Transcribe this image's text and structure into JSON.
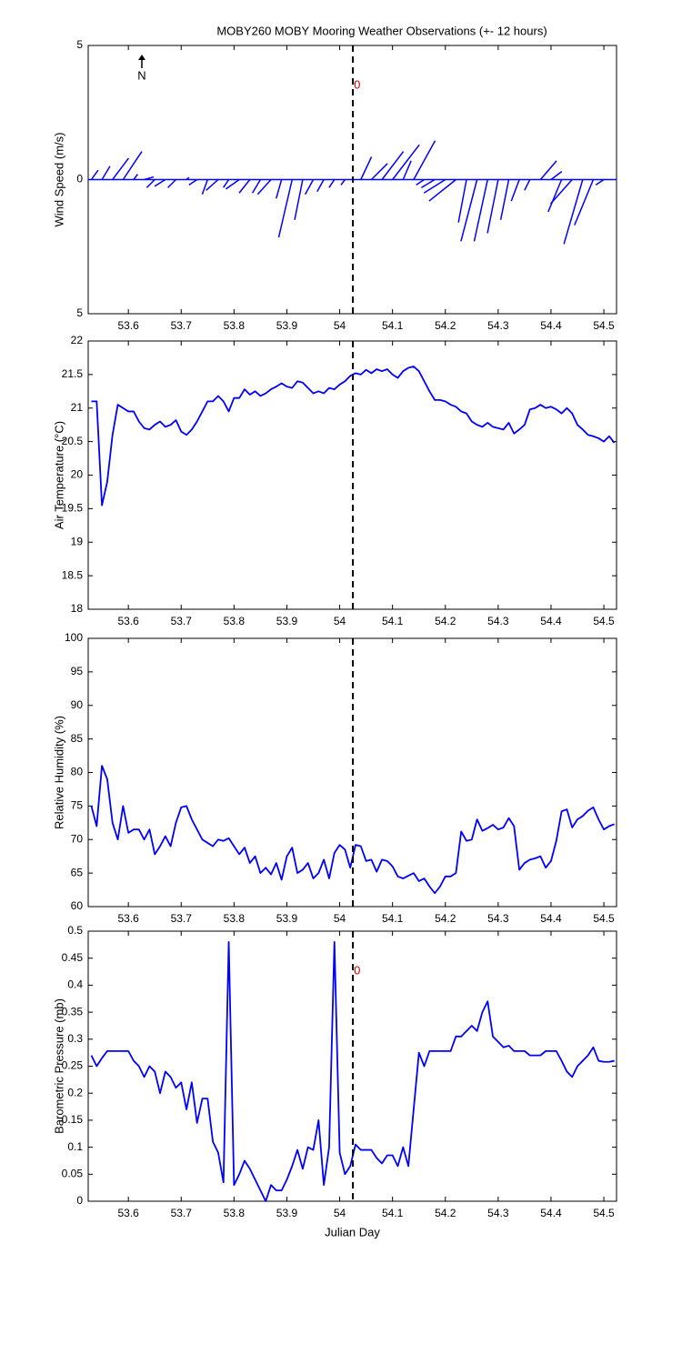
{
  "chart_data": [
    {
      "type": "stick",
      "title": "MOBY260 MOBY Mooring Weather Observations (+- 12 hours)",
      "ylabel": "Wind Speed (m/s)",
      "north_label": "N",
      "annotations": [
        "0"
      ],
      "xlim": [
        53.524,
        54.524
      ],
      "xticks": [
        53.6,
        53.7,
        53.8,
        53.9,
        54,
        54.1,
        54.2,
        54.3,
        54.4,
        54.5
      ],
      "ylim": [
        -5,
        5
      ],
      "yticks": [
        {
          "value": -5,
          "label": "5"
        },
        0,
        5
      ],
      "vline": 54.025,
      "series": [
        {
          "color": "#0000ff",
          "x": [
            53.53,
            53.55,
            53.57,
            53.59,
            53.61,
            53.63,
            53.65,
            53.67,
            53.69,
            53.71,
            53.73,
            53.75,
            53.77,
            53.79,
            53.81,
            53.83,
            53.85,
            53.87,
            53.89,
            53.91,
            53.93,
            53.95,
            53.97,
            53.99,
            54.01,
            54.04,
            54.06,
            54.08,
            54.1,
            54.12,
            54.14,
            54.16,
            54.18,
            54.2,
            54.22,
            54.24,
            54.26,
            54.28,
            54.3,
            54.32,
            54.34,
            54.36,
            54.38,
            54.4,
            54.42,
            54.44,
            54.46,
            54.48,
            54.5
          ],
          "u": [
            0.25,
            0.3,
            0.6,
            0.7,
            0.15,
            0.35,
            -0.3,
            -0.4,
            -0.3,
            0.1,
            -0.3,
            -0.2,
            -0.45,
            -0.2,
            -0.5,
            -0.4,
            -0.3,
            -0.5,
            -0.2,
            -0.5,
            -0.3,
            -0.3,
            -0.25,
            -0.2,
            -0.15,
            0.4,
            0.6,
            0.8,
            1.0,
            0.3,
            0.8,
            -0.3,
            -0.5,
            -0.8,
            -1.0,
            -0.3,
            -0.6,
            -0.5,
            -0.4,
            -0.3,
            -0.3,
            -0.2,
            0.6,
            0.4,
            -0.5,
            -0.8,
            -0.7,
            -0.7,
            -0.3
          ],
          "v": [
            0.35,
            0.5,
            0.8,
            1.05,
            0.2,
            0.1,
            -0.3,
            -0.25,
            -0.3,
            0.08,
            -0.2,
            -0.55,
            -0.4,
            -0.3,
            -0.35,
            -0.5,
            -0.5,
            -0.55,
            -0.7,
            -2.15,
            -1.5,
            -0.55,
            -0.45,
            -0.3,
            -0.2,
            0.85,
            0.6,
            1.05,
            1.3,
            0.7,
            1.45,
            -0.2,
            -0.3,
            -0.5,
            -0.8,
            -1.6,
            -2.3,
            -2.3,
            -2.0,
            -1.5,
            -0.8,
            -0.4,
            0.7,
            0.3,
            -1.2,
            -0.9,
            -2.4,
            -1.7,
            -0.2
          ]
        }
      ]
    },
    {
      "type": "line",
      "ylabel": "Air Temperature (°C)",
      "xlim": [
        53.524,
        54.524
      ],
      "xticks": [
        53.6,
        53.7,
        53.8,
        53.9,
        54,
        54.1,
        54.2,
        54.3,
        54.4,
        54.5
      ],
      "ylim": [
        18,
        22
      ],
      "yticks": [
        18,
        18.5,
        19,
        19.5,
        20,
        20.5,
        21,
        21.5,
        22
      ],
      "vline": 54.025,
      "x": [
        53.53,
        53.54,
        53.55,
        53.56,
        53.57,
        53.58,
        53.59,
        53.6,
        53.61,
        53.62,
        53.63,
        53.64,
        53.65,
        53.66,
        53.67,
        53.68,
        53.69,
        53.7,
        53.71,
        53.72,
        53.73,
        53.74,
        53.75,
        53.76,
        53.77,
        53.78,
        53.79,
        53.8,
        53.81,
        53.82,
        53.83,
        53.84,
        53.85,
        53.86,
        53.87,
        53.88,
        53.89,
        53.9,
        53.91,
        53.92,
        53.93,
        53.94,
        53.95,
        53.96,
        53.97,
        53.98,
        53.99,
        54.0,
        54.01,
        54.02,
        54.03,
        54.04,
        54.05,
        54.06,
        54.07,
        54.08,
        54.09,
        54.1,
        54.11,
        54.12,
        54.13,
        54.14,
        54.15,
        54.16,
        54.17,
        54.18,
        54.19,
        54.2,
        54.21,
        54.22,
        54.23,
        54.24,
        54.25,
        54.26,
        54.27,
        54.28,
        54.29,
        54.3,
        54.31,
        54.32,
        54.33,
        54.34,
        54.35,
        54.36,
        54.37,
        54.38,
        54.39,
        54.4,
        54.41,
        54.42,
        54.43,
        54.44,
        54.45,
        54.46,
        54.47,
        54.48,
        54.49,
        54.5,
        54.51,
        54.52
      ],
      "series": [
        {
          "color": "#0000ff",
          "values": [
            21.1,
            21.1,
            19.55,
            19.9,
            20.6,
            21.05,
            21.0,
            20.95,
            20.95,
            20.8,
            20.7,
            20.68,
            20.75,
            20.8,
            20.72,
            20.75,
            20.82,
            20.65,
            20.6,
            20.68,
            20.8,
            20.95,
            21.1,
            21.1,
            21.18,
            21.1,
            20.95,
            21.15,
            21.15,
            21.28,
            21.2,
            21.25,
            21.18,
            21.22,
            21.28,
            21.32,
            21.37,
            21.32,
            21.3,
            21.4,
            21.38,
            21.3,
            21.22,
            21.25,
            21.22,
            21.3,
            21.28,
            21.35,
            21.4,
            21.48,
            21.52,
            21.5,
            21.57,
            21.52,
            21.58,
            21.55,
            21.58,
            21.5,
            21.45,
            21.55,
            21.6,
            21.62,
            21.55,
            21.4,
            21.25,
            21.12,
            21.12,
            21.1,
            21.05,
            21.02,
            20.95,
            20.92,
            20.8,
            20.75,
            20.72,
            20.78,
            20.72,
            20.7,
            20.68,
            20.78,
            20.62,
            20.68,
            20.75,
            20.98,
            21.0,
            21.05,
            21.0,
            21.02,
            20.98,
            20.92,
            21.0,
            20.92,
            20.75,
            20.68,
            20.6,
            20.58,
            20.55,
            20.5,
            20.58,
            20.48
          ]
        }
      ]
    },
    {
      "type": "line",
      "ylabel": "Relative Humidity (%)",
      "xlim": [
        53.524,
        54.524
      ],
      "xticks": [
        53.6,
        53.7,
        53.8,
        53.9,
        54,
        54.1,
        54.2,
        54.3,
        54.4,
        54.5
      ],
      "ylim": [
        60,
        100
      ],
      "yticks": [
        60,
        65,
        70,
        75,
        80,
        85,
        90,
        95,
        100
      ],
      "vline": 54.025,
      "x": [
        53.53,
        53.54,
        53.55,
        53.56,
        53.57,
        53.58,
        53.59,
        53.6,
        53.61,
        53.62,
        53.63,
        53.64,
        53.65,
        53.66,
        53.67,
        53.68,
        53.69,
        53.7,
        53.71,
        53.72,
        53.73,
        53.74,
        53.75,
        53.76,
        53.77,
        53.78,
        53.79,
        53.8,
        53.81,
        53.82,
        53.83,
        53.84,
        53.85,
        53.86,
        53.87,
        53.88,
        53.89,
        53.9,
        53.91,
        53.92,
        53.93,
        53.94,
        53.95,
        53.96,
        53.97,
        53.98,
        53.99,
        54.0,
        54.01,
        54.02,
        54.03,
        54.04,
        54.05,
        54.06,
        54.07,
        54.08,
        54.09,
        54.1,
        54.11,
        54.12,
        54.13,
        54.14,
        54.15,
        54.16,
        54.17,
        54.18,
        54.19,
        54.2,
        54.21,
        54.22,
        54.23,
        54.24,
        54.25,
        54.26,
        54.27,
        54.28,
        54.29,
        54.3,
        54.31,
        54.32,
        54.33,
        54.34,
        54.35,
        54.36,
        54.37,
        54.38,
        54.39,
        54.4,
        54.41,
        54.42,
        54.43,
        54.44,
        54.45,
        54.46,
        54.47,
        54.48,
        54.49,
        54.5,
        54.51,
        54.52
      ],
      "series": [
        {
          "color": "#0000ff",
          "values": [
            75,
            72,
            81,
            79,
            72.5,
            70,
            75,
            71,
            71.5,
            71.5,
            70,
            71.5,
            67.8,
            69,
            70.5,
            69,
            72.5,
            74.8,
            75,
            73,
            71.5,
            70,
            69.5,
            69,
            70,
            69.8,
            70.2,
            69,
            67.8,
            68.8,
            66.5,
            67.5,
            65,
            65.8,
            64.8,
            66.5,
            64,
            67.5,
            68.8,
            65,
            65.5,
            66.5,
            64.2,
            65,
            67,
            64.2,
            68,
            69.2,
            68.5,
            65.8,
            69.2,
            69,
            66.8,
            67,
            65.2,
            67,
            66.8,
            66,
            64.5,
            64.2,
            64.6,
            65,
            63.8,
            64.2,
            63,
            62,
            63,
            64.5,
            64.5,
            65,
            71.2,
            69.8,
            70,
            73,
            71.3,
            71.7,
            72.2,
            71.5,
            71.8,
            73.2,
            72,
            65.5,
            66.5,
            67,
            67.2,
            67.5,
            65.8,
            66.8,
            69.8,
            74.2,
            74.5,
            71.8,
            73,
            73.5,
            74.3,
            74.8,
            73,
            71.5,
            72,
            72.3
          ]
        }
      ]
    },
    {
      "type": "line",
      "ylabel": "Barometric Pressure (mb)",
      "xlabel": "Julian Day",
      "annotations": [
        "0"
      ],
      "xlim": [
        53.524,
        54.524
      ],
      "xticks": [
        53.6,
        53.7,
        53.8,
        53.9,
        54,
        54.1,
        54.2,
        54.3,
        54.4,
        54.5
      ],
      "ylim": [
        0,
        0.5
      ],
      "yticks": [
        0,
        0.05,
        0.1,
        0.15,
        0.2,
        0.25,
        0.3,
        0.35,
        0.4,
        0.45,
        0.5
      ],
      "vline": 54.025,
      "x": [
        53.53,
        53.54,
        53.55,
        53.56,
        53.57,
        53.58,
        53.59,
        53.6,
        53.61,
        53.62,
        53.63,
        53.64,
        53.65,
        53.66,
        53.67,
        53.68,
        53.69,
        53.7,
        53.71,
        53.72,
        53.73,
        53.74,
        53.75,
        53.76,
        53.77,
        53.78,
        53.79,
        53.8,
        53.81,
        53.82,
        53.83,
        53.84,
        53.85,
        53.86,
        53.87,
        53.88,
        53.89,
        53.9,
        53.91,
        53.92,
        53.93,
        53.94,
        53.95,
        53.96,
        53.97,
        53.98,
        53.99,
        54.0,
        54.01,
        54.02,
        54.03,
        54.04,
        54.05,
        54.06,
        54.07,
        54.08,
        54.09,
        54.1,
        54.11,
        54.12,
        54.13,
        54.14,
        54.15,
        54.16,
        54.17,
        54.18,
        54.19,
        54.2,
        54.21,
        54.22,
        54.23,
        54.24,
        54.25,
        54.26,
        54.27,
        54.28,
        54.29,
        54.3,
        54.31,
        54.32,
        54.33,
        54.34,
        54.35,
        54.36,
        54.37,
        54.38,
        54.39,
        54.4,
        54.41,
        54.42,
        54.43,
        54.44,
        54.45,
        54.46,
        54.47,
        54.48,
        54.49,
        54.5,
        54.51,
        54.52
      ],
      "series": [
        {
          "color": "#0000ff",
          "values": [
            0.27,
            0.25,
            0.265,
            0.278,
            0.278,
            0.278,
            0.278,
            0.278,
            0.26,
            0.25,
            0.23,
            0.25,
            0.24,
            0.2,
            0.24,
            0.23,
            0.21,
            0.22,
            0.17,
            0.22,
            0.145,
            0.19,
            0.19,
            0.11,
            0.09,
            0.035,
            0.48,
            0.03,
            0.05,
            0.075,
            0.06,
            0.04,
            0.02,
            0,
            0.03,
            0.02,
            0.02,
            0.04,
            0.065,
            0.095,
            0.06,
            0.1,
            0.095,
            0.15,
            0.03,
            0.1,
            0.48,
            0.09,
            0.05,
            0.065,
            0.105,
            0.095,
            0.095,
            0.095,
            0.08,
            0.07,
            0.085,
            0.085,
            0.065,
            0.1,
            0.065,
            0.17,
            0.275,
            0.25,
            0.278,
            0.278,
            0.278,
            0.278,
            0.278,
            0.305,
            0.305,
            0.315,
            0.325,
            0.315,
            0.35,
            0.37,
            0.305,
            0.295,
            0.285,
            0.288,
            0.278,
            0.278,
            0.278,
            0.27,
            0.27,
            0.27,
            0.278,
            0.278,
            0.278,
            0.26,
            0.24,
            0.23,
            0.25,
            0.26,
            0.27,
            0.285,
            0.26,
            0.258,
            0.258,
            0.26
          ]
        }
      ]
    }
  ]
}
